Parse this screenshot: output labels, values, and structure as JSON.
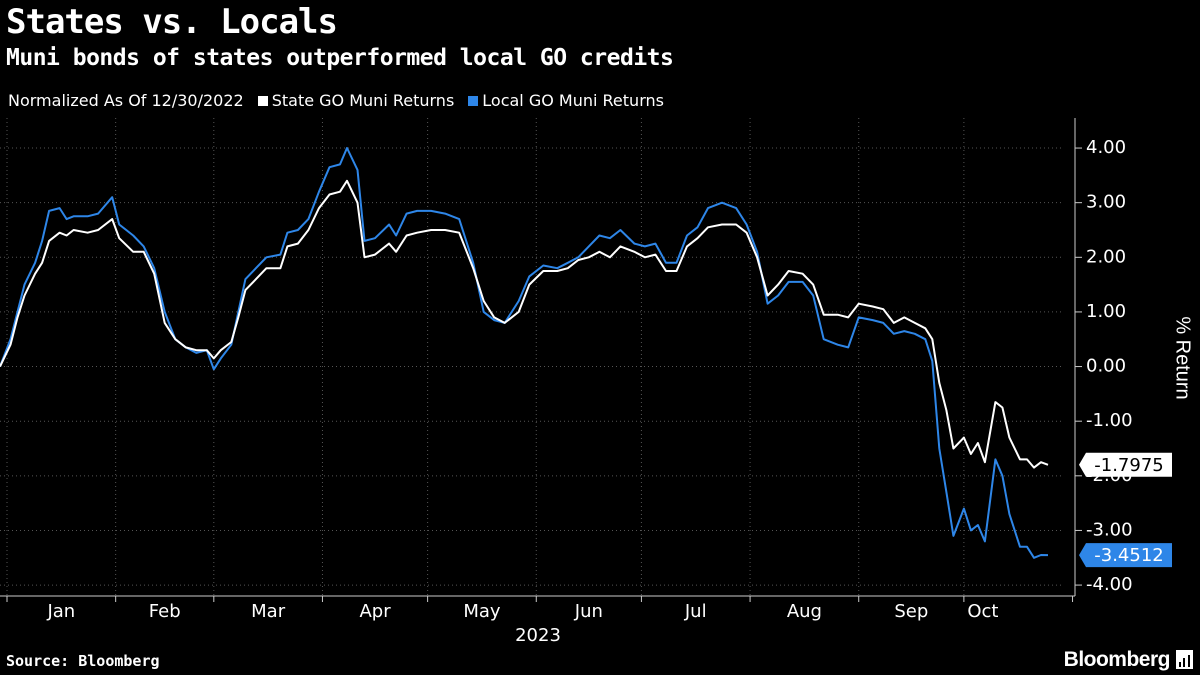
{
  "header": {
    "title": "States vs. Locals",
    "subtitle": "Muni bonds of states outperformed local GO credits"
  },
  "legend": {
    "note": "Normalized As Of 12/30/2022",
    "items": [
      {
        "label": "State GO Muni Returns",
        "color": "#ffffff"
      },
      {
        "label": "Local GO Muni Returns",
        "color": "#2e86e8"
      }
    ]
  },
  "footer": {
    "source": "Source: Bloomberg",
    "brand": "Bloomberg",
    "brand_icon": "chart-bars-icon"
  },
  "chart_data": {
    "type": "line",
    "x_axis": {
      "months": [
        "Jan",
        "Feb",
        "Mar",
        "Apr",
        "May",
        "Jun",
        "Jul",
        "Aug",
        "Sep",
        "Oct"
      ],
      "year_label": "2023",
      "range": [
        "2022-12-30",
        "2023-10-25"
      ]
    },
    "y_axis": {
      "label": "% Return",
      "ticks": [
        "4.00",
        "3.00",
        "2.00",
        "1.00",
        "0.00",
        "-1.00",
        "-2.00",
        "-3.00",
        "-4.00"
      ],
      "ylim": [
        -4.2,
        4.55
      ],
      "position": "right"
    },
    "grid": true,
    "series": [
      {
        "name": "State GO Muni Returns",
        "color": "#ffffff",
        "last_value_label": "-1.7975",
        "points": [
          [
            "2022-12-30",
            0.0
          ],
          [
            "2023-01-02",
            0.4
          ],
          [
            "2023-01-04",
            0.9
          ],
          [
            "2023-01-06",
            1.3
          ],
          [
            "2023-01-09",
            1.7
          ],
          [
            "2023-01-11",
            1.9
          ],
          [
            "2023-01-13",
            2.3
          ],
          [
            "2023-01-16",
            2.45
          ],
          [
            "2023-01-18",
            2.4
          ],
          [
            "2023-01-20",
            2.5
          ],
          [
            "2023-01-24",
            2.45
          ],
          [
            "2023-01-27",
            2.5
          ],
          [
            "2023-01-31",
            2.7
          ],
          [
            "2023-02-02",
            2.35
          ],
          [
            "2023-02-06",
            2.1
          ],
          [
            "2023-02-09",
            2.1
          ],
          [
            "2023-02-12",
            1.7
          ],
          [
            "2023-02-15",
            0.8
          ],
          [
            "2023-02-18",
            0.5
          ],
          [
            "2023-02-21",
            0.35
          ],
          [
            "2023-02-24",
            0.3
          ],
          [
            "2023-02-27",
            0.3
          ],
          [
            "2023-03-01",
            0.15
          ],
          [
            "2023-03-03",
            0.3
          ],
          [
            "2023-03-06",
            0.45
          ],
          [
            "2023-03-08",
            0.9
          ],
          [
            "2023-03-10",
            1.4
          ],
          [
            "2023-03-13",
            1.6
          ],
          [
            "2023-03-16",
            1.8
          ],
          [
            "2023-03-20",
            1.8
          ],
          [
            "2023-03-22",
            2.2
          ],
          [
            "2023-03-25",
            2.25
          ],
          [
            "2023-03-28",
            2.5
          ],
          [
            "2023-03-31",
            2.9
          ],
          [
            "2023-04-03",
            3.15
          ],
          [
            "2023-04-06",
            3.2
          ],
          [
            "2023-04-08",
            3.4
          ],
          [
            "2023-04-11",
            3.0
          ],
          [
            "2023-04-13",
            2.0
          ],
          [
            "2023-04-16",
            2.05
          ],
          [
            "2023-04-20",
            2.25
          ],
          [
            "2023-04-22",
            2.1
          ],
          [
            "2023-04-25",
            2.4
          ],
          [
            "2023-04-28",
            2.45
          ],
          [
            "2023-05-02",
            2.5
          ],
          [
            "2023-05-06",
            2.5
          ],
          [
            "2023-05-10",
            2.45
          ],
          [
            "2023-05-14",
            1.8
          ],
          [
            "2023-05-17",
            1.2
          ],
          [
            "2023-05-20",
            0.9
          ],
          [
            "2023-05-23",
            0.8
          ],
          [
            "2023-05-27",
            1.0
          ],
          [
            "2023-05-30",
            1.5
          ],
          [
            "2023-06-03",
            1.75
          ],
          [
            "2023-06-07",
            1.75
          ],
          [
            "2023-06-10",
            1.8
          ],
          [
            "2023-06-13",
            1.95
          ],
          [
            "2023-06-16",
            2.0
          ],
          [
            "2023-06-19",
            2.1
          ],
          [
            "2023-06-22",
            2.0
          ],
          [
            "2023-06-25",
            2.2
          ],
          [
            "2023-06-29",
            2.1
          ],
          [
            "2023-07-02",
            2.0
          ],
          [
            "2023-07-05",
            2.05
          ],
          [
            "2023-07-08",
            1.75
          ],
          [
            "2023-07-11",
            1.75
          ],
          [
            "2023-07-14",
            2.2
          ],
          [
            "2023-07-17",
            2.35
          ],
          [
            "2023-07-20",
            2.55
          ],
          [
            "2023-07-24",
            2.6
          ],
          [
            "2023-07-28",
            2.6
          ],
          [
            "2023-07-31",
            2.45
          ],
          [
            "2023-08-03",
            2.0
          ],
          [
            "2023-08-06",
            1.3
          ],
          [
            "2023-08-09",
            1.5
          ],
          [
            "2023-08-12",
            1.75
          ],
          [
            "2023-08-16",
            1.7
          ],
          [
            "2023-08-19",
            1.5
          ],
          [
            "2023-08-22",
            0.95
          ],
          [
            "2023-08-26",
            0.95
          ],
          [
            "2023-08-29",
            0.9
          ],
          [
            "2023-09-01",
            1.15
          ],
          [
            "2023-09-05",
            1.1
          ],
          [
            "2023-09-08",
            1.05
          ],
          [
            "2023-09-11",
            0.8
          ],
          [
            "2023-09-14",
            0.9
          ],
          [
            "2023-09-17",
            0.8
          ],
          [
            "2023-09-20",
            0.7
          ],
          [
            "2023-09-22",
            0.5
          ],
          [
            "2023-09-24",
            -0.3
          ],
          [
            "2023-09-26",
            -0.8
          ],
          [
            "2023-09-28",
            -1.5
          ],
          [
            "2023-10-01",
            -1.3
          ],
          [
            "2023-10-03",
            -1.6
          ],
          [
            "2023-10-05",
            -1.4
          ],
          [
            "2023-10-07",
            -1.75
          ],
          [
            "2023-10-10",
            -0.65
          ],
          [
            "2023-10-12",
            -0.75
          ],
          [
            "2023-10-14",
            -1.3
          ],
          [
            "2023-10-17",
            -1.7
          ],
          [
            "2023-10-19",
            -1.7
          ],
          [
            "2023-10-21",
            -1.85
          ],
          [
            "2023-10-23",
            -1.75
          ],
          [
            "2023-10-25",
            -1.7975
          ]
        ]
      },
      {
        "name": "Local GO Muni Returns",
        "color": "#2e86e8",
        "last_value_label": "-3.4512",
        "points": [
          [
            "2022-12-30",
            0.0
          ],
          [
            "2023-01-02",
            0.5
          ],
          [
            "2023-01-04",
            1.0
          ],
          [
            "2023-01-06",
            1.5
          ],
          [
            "2023-01-09",
            1.9
          ],
          [
            "2023-01-11",
            2.3
          ],
          [
            "2023-01-13",
            2.85
          ],
          [
            "2023-01-16",
            2.9
          ],
          [
            "2023-01-18",
            2.7
          ],
          [
            "2023-01-20",
            2.75
          ],
          [
            "2023-01-24",
            2.75
          ],
          [
            "2023-01-27",
            2.8
          ],
          [
            "2023-01-31",
            3.1
          ],
          [
            "2023-02-02",
            2.6
          ],
          [
            "2023-02-06",
            2.4
          ],
          [
            "2023-02-09",
            2.2
          ],
          [
            "2023-02-12",
            1.8
          ],
          [
            "2023-02-15",
            1.0
          ],
          [
            "2023-02-18",
            0.5
          ],
          [
            "2023-02-21",
            0.35
          ],
          [
            "2023-02-24",
            0.25
          ],
          [
            "2023-02-27",
            0.3
          ],
          [
            "2023-03-01",
            -0.05
          ],
          [
            "2023-03-03",
            0.15
          ],
          [
            "2023-03-06",
            0.4
          ],
          [
            "2023-03-08",
            1.0
          ],
          [
            "2023-03-10",
            1.6
          ],
          [
            "2023-03-13",
            1.8
          ],
          [
            "2023-03-16",
            2.0
          ],
          [
            "2023-03-20",
            2.05
          ],
          [
            "2023-03-22",
            2.45
          ],
          [
            "2023-03-25",
            2.5
          ],
          [
            "2023-03-28",
            2.7
          ],
          [
            "2023-03-31",
            3.2
          ],
          [
            "2023-04-03",
            3.65
          ],
          [
            "2023-04-06",
            3.7
          ],
          [
            "2023-04-08",
            4.0
          ],
          [
            "2023-04-11",
            3.6
          ],
          [
            "2023-04-13",
            2.3
          ],
          [
            "2023-04-16",
            2.35
          ],
          [
            "2023-04-20",
            2.6
          ],
          [
            "2023-04-22",
            2.4
          ],
          [
            "2023-04-25",
            2.8
          ],
          [
            "2023-04-28",
            2.85
          ],
          [
            "2023-05-02",
            2.85
          ],
          [
            "2023-05-06",
            2.8
          ],
          [
            "2023-05-10",
            2.7
          ],
          [
            "2023-05-14",
            1.9
          ],
          [
            "2023-05-17",
            1.0
          ],
          [
            "2023-05-20",
            0.85
          ],
          [
            "2023-05-23",
            0.8
          ],
          [
            "2023-05-27",
            1.2
          ],
          [
            "2023-05-30",
            1.65
          ],
          [
            "2023-06-03",
            1.85
          ],
          [
            "2023-06-07",
            1.8
          ],
          [
            "2023-06-10",
            1.9
          ],
          [
            "2023-06-13",
            2.0
          ],
          [
            "2023-06-16",
            2.2
          ],
          [
            "2023-06-19",
            2.4
          ],
          [
            "2023-06-22",
            2.35
          ],
          [
            "2023-06-25",
            2.5
          ],
          [
            "2023-06-29",
            2.25
          ],
          [
            "2023-07-02",
            2.2
          ],
          [
            "2023-07-05",
            2.25
          ],
          [
            "2023-07-08",
            1.9
          ],
          [
            "2023-07-11",
            1.9
          ],
          [
            "2023-07-14",
            2.4
          ],
          [
            "2023-07-17",
            2.55
          ],
          [
            "2023-07-20",
            2.9
          ],
          [
            "2023-07-24",
            3.0
          ],
          [
            "2023-07-28",
            2.9
          ],
          [
            "2023-07-31",
            2.6
          ],
          [
            "2023-08-03",
            2.1
          ],
          [
            "2023-08-06",
            1.15
          ],
          [
            "2023-08-09",
            1.3
          ],
          [
            "2023-08-12",
            1.55
          ],
          [
            "2023-08-16",
            1.55
          ],
          [
            "2023-08-19",
            1.3
          ],
          [
            "2023-08-22",
            0.5
          ],
          [
            "2023-08-26",
            0.4
          ],
          [
            "2023-08-29",
            0.35
          ],
          [
            "2023-09-01",
            0.9
          ],
          [
            "2023-09-05",
            0.85
          ],
          [
            "2023-09-08",
            0.8
          ],
          [
            "2023-09-11",
            0.6
          ],
          [
            "2023-09-14",
            0.65
          ],
          [
            "2023-09-17",
            0.6
          ],
          [
            "2023-09-20",
            0.5
          ],
          [
            "2023-09-22",
            0.1
          ],
          [
            "2023-09-24",
            -1.5
          ],
          [
            "2023-09-26",
            -2.3
          ],
          [
            "2023-09-28",
            -3.1
          ],
          [
            "2023-10-01",
            -2.6
          ],
          [
            "2023-10-03",
            -3.0
          ],
          [
            "2023-10-05",
            -2.9
          ],
          [
            "2023-10-07",
            -3.2
          ],
          [
            "2023-10-10",
            -1.7
          ],
          [
            "2023-10-12",
            -2.0
          ],
          [
            "2023-10-14",
            -2.7
          ],
          [
            "2023-10-17",
            -3.3
          ],
          [
            "2023-10-19",
            -3.3
          ],
          [
            "2023-10-21",
            -3.5
          ],
          [
            "2023-10-23",
            -3.45
          ],
          [
            "2023-10-25",
            -3.4512
          ]
        ]
      }
    ]
  }
}
